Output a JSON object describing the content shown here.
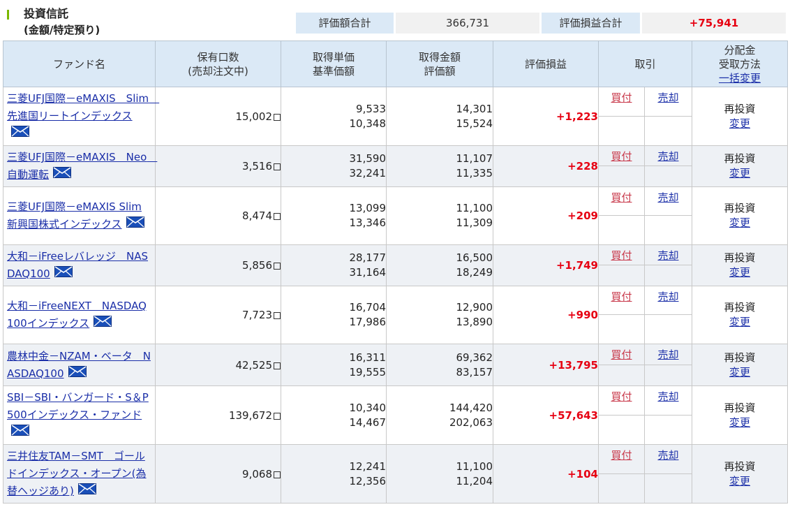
{
  "section": {
    "title": "投資信託",
    "subtitle": "(金額/特定預り)"
  },
  "summary": {
    "valuation_label": "評価額合計",
    "valuation_value": "366,731",
    "pl_label": "評価損益合計",
    "pl_value": "+75,941"
  },
  "headers": {
    "fund_name": "ファンド名",
    "holdings_1": "保有口数",
    "holdings_2": "(売却注文中)",
    "cost_1": "取得単価",
    "cost_2": "基準価額",
    "amount_1": "取得金額",
    "amount_2": "評価額",
    "pl": "評価損益",
    "trade": "取引",
    "dist_1": "分配金",
    "dist_2": "受取方法",
    "dist_3": "一括変更"
  },
  "labels": {
    "buy": "買付",
    "sell": "売却",
    "reinvest": "再投資",
    "change": "変更"
  },
  "funds": [
    {
      "name": "三菱UFJ国際－eMAXIS　Slim　先進国リートインデックス",
      "units": "15,002",
      "unit_cost": "9,533",
      "base_price": "10,348",
      "cost_amount": "14,301",
      "valuation": "15,524",
      "pl": "+1,223"
    },
    {
      "name": "三菱UFJ国際－eMAXIS　Neo　自動運転",
      "units": "3,516",
      "unit_cost": "31,590",
      "base_price": "32,241",
      "cost_amount": "11,107",
      "valuation": "11,335",
      "pl": "+228"
    },
    {
      "name": "三菱UFJ国際－eMAXIS Slim 新興国株式インデックス",
      "units": "8,474",
      "unit_cost": "13,099",
      "base_price": "13,346",
      "cost_amount": "11,100",
      "valuation": "11,309",
      "pl": "+209"
    },
    {
      "name": "大和－iFreeレバレッジ　NASDAQ100",
      "units": "5,856",
      "unit_cost": "28,177",
      "base_price": "31,164",
      "cost_amount": "16,500",
      "valuation": "18,249",
      "pl": "+1,749"
    },
    {
      "name": "大和－iFreeNEXT　NASDAQ100インデックス",
      "units": "7,723",
      "unit_cost": "16,704",
      "base_price": "17,986",
      "cost_amount": "12,900",
      "valuation": "13,890",
      "pl": "+990"
    },
    {
      "name": "農林中金－NZAM・ベータ　NASDAQ100",
      "units": "42,525",
      "unit_cost": "16,311",
      "base_price": "19,555",
      "cost_amount": "69,362",
      "valuation": "83,157",
      "pl": "+13,795"
    },
    {
      "name": "SBI－SBI・バンガード・S＆P500インデックス・ファンド",
      "units": "139,672",
      "unit_cost": "10,340",
      "base_price": "14,467",
      "cost_amount": "144,420",
      "valuation": "202,063",
      "pl": "+57,643"
    },
    {
      "name": "三井住友TAM－SMT　ゴールドインデックス・オープン(為替ヘッジあり)",
      "units": "9,068",
      "unit_cost": "12,241",
      "base_price": "12,356",
      "cost_amount": "11,100",
      "valuation": "11,204",
      "pl": "+104"
    }
  ],
  "colors": {
    "header_bg": "#dbe9f6",
    "alt_row_bg": "#eef1f5",
    "link": "#1a2ea8",
    "buy_link": "#c8384a",
    "profit": "#e60012",
    "accent_bar": "#7ab800"
  },
  "icons": {
    "mail": "mail-icon"
  }
}
